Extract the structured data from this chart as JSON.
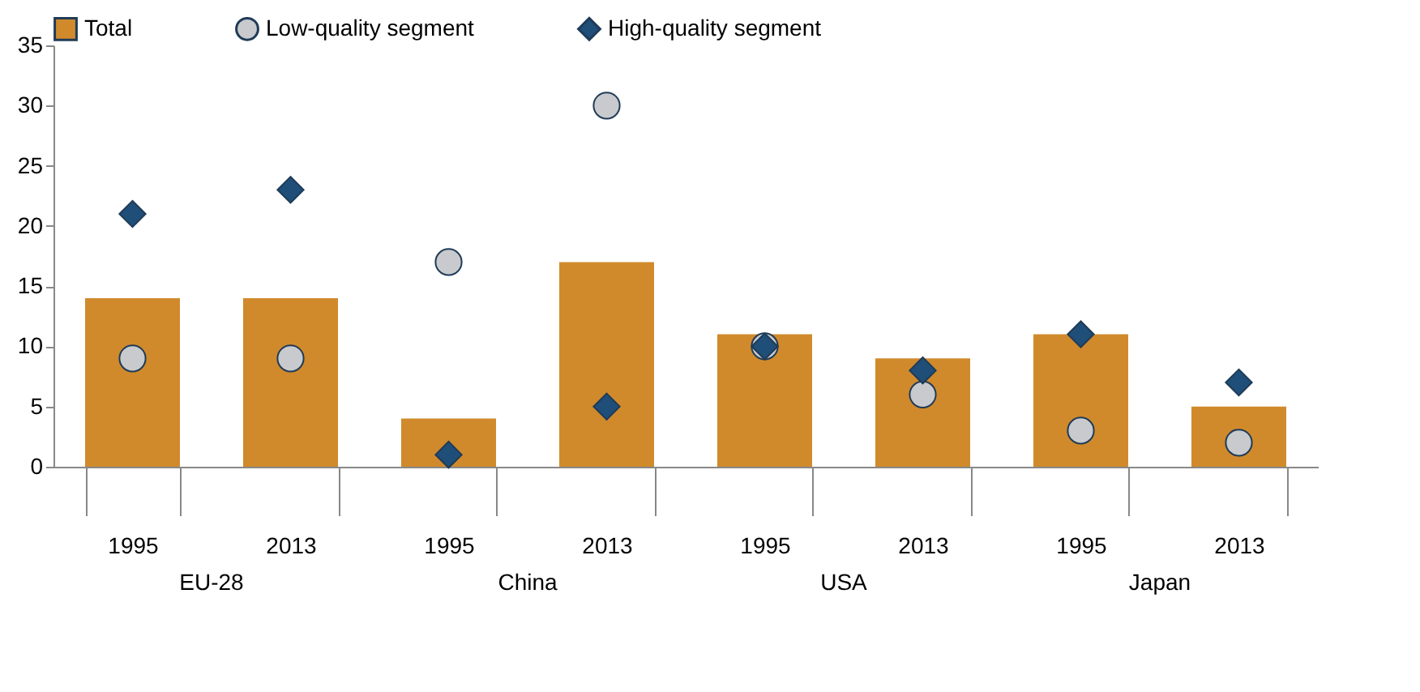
{
  "chart_data": {
    "type": "bar",
    "categories": [
      "1995",
      "2013",
      "1995",
      "2013",
      "1995",
      "2013",
      "1995",
      "2013"
    ],
    "series": [
      {
        "name": "Total",
        "color": "#d08a2c",
        "values": [
          14,
          14,
          4,
          17,
          11,
          9,
          11,
          5
        ]
      },
      {
        "name": "Low-quality segment",
        "type": "scatter",
        "marker": "circle",
        "color": "#c8cacd",
        "values": [
          9,
          9,
          17,
          30,
          10,
          6,
          3,
          2
        ]
      },
      {
        "name": "High-quality segment",
        "type": "scatter",
        "marker": "diamond",
        "color": "#1f4e79",
        "values": [
          21,
          23,
          1,
          5,
          10,
          8,
          11,
          7
        ]
      }
    ],
    "ylim": [
      0,
      35
    ],
    "yticks": [
      0,
      5,
      10,
      15,
      20,
      25,
      30,
      35
    ],
    "grid": false,
    "legend": "top",
    "annotations": [
      "EU-28",
      "China",
      "USA",
      "Japan"
    ]
  }
}
